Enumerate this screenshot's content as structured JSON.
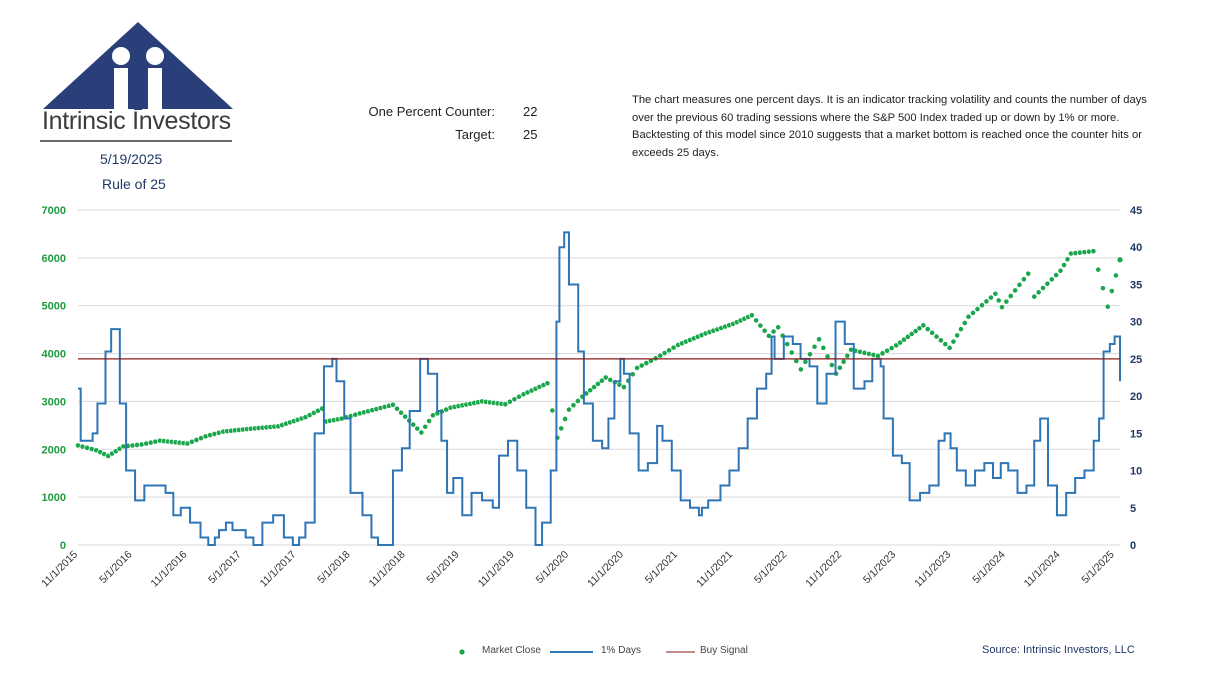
{
  "header": {
    "logo_name": "Intrinsic Investors",
    "date": "5/19/2025",
    "rule_name": "Rule of 25",
    "counter_label": "One Percent Counter:",
    "counter_value": "22",
    "target_label": "Target:",
    "target_value": "25",
    "description": "The chart measures one percent days.  It is an indicator tracking volatility and counts the number of days over the previous 60 trading sessions where the S&P 500 Index traded up or down by 1% or more. Backtesting of this model since 2010 suggests that a market bottom is reached once the counter hits or exceeds 25 days."
  },
  "source": "Source: Intrinsic Investors, LLC",
  "colors": {
    "market": "#1aa64a",
    "days": "#2e75b6",
    "signal": "#8b1a1a",
    "left_axis": "#1f9a3e",
    "right_axis": "#1f3864",
    "logo": "#2a3f7a"
  },
  "chart_data": {
    "type": "line",
    "x_axis": {
      "type": "date",
      "min": "2015-11-01",
      "max": "2025-05-19",
      "tick_labels": [
        "11/1/2015",
        "5/1/2016",
        "11/1/2016",
        "5/1/2017",
        "11/1/2017",
        "5/1/2018",
        "11/1/2018",
        "5/1/2019",
        "11/1/2019",
        "5/1/2020",
        "11/1/2020",
        "5/1/2021",
        "11/1/2021",
        "5/1/2022",
        "11/1/2022",
        "5/1/2023",
        "11/1/2023",
        "5/1/2024",
        "11/1/2024",
        "5/1/2025"
      ]
    },
    "y_left": {
      "ylim": [
        0,
        7000
      ],
      "ticks": [
        0,
        1000,
        2000,
        3000,
        4000,
        5000,
        6000,
        7000
      ]
    },
    "y_right": {
      "ylim": [
        0,
        45
      ],
      "ticks": [
        0,
        5,
        10,
        15,
        20,
        25,
        30,
        35,
        40,
        45
      ]
    },
    "grid": "horizontal",
    "legend_position": "bottom",
    "series": [
      {
        "name": "Market Close",
        "axis": "left",
        "style": "dots",
        "points": [
          [
            "2015-11-01",
            2080
          ],
          [
            "2016-01-01",
            1980
          ],
          [
            "2016-02-10",
            1860
          ],
          [
            "2016-04-01",
            2060
          ],
          [
            "2016-06-01",
            2100
          ],
          [
            "2016-08-01",
            2180
          ],
          [
            "2016-11-01",
            2120
          ],
          [
            "2017-01-01",
            2270
          ],
          [
            "2017-03-01",
            2370
          ],
          [
            "2017-06-01",
            2430
          ],
          [
            "2017-09-01",
            2480
          ],
          [
            "2017-12-01",
            2670
          ],
          [
            "2018-01-26",
            2850
          ],
          [
            "2018-02-08",
            2580
          ],
          [
            "2018-04-01",
            2640
          ],
          [
            "2018-06-01",
            2750
          ],
          [
            "2018-09-20",
            2930
          ],
          [
            "2018-12-24",
            2350
          ],
          [
            "2019-02-01",
            2710
          ],
          [
            "2019-04-01",
            2870
          ],
          [
            "2019-07-15",
            3000
          ],
          [
            "2019-10-01",
            2940
          ],
          [
            "2019-12-01",
            3150
          ],
          [
            "2020-02-19",
            3380
          ],
          [
            "2020-03-23",
            2240
          ],
          [
            "2020-05-01",
            2830
          ],
          [
            "2020-06-15",
            3100
          ],
          [
            "2020-09-01",
            3500
          ],
          [
            "2020-11-01",
            3300
          ],
          [
            "2020-12-15",
            3700
          ],
          [
            "2021-02-15",
            3900
          ],
          [
            "2021-05-01",
            4180
          ],
          [
            "2021-08-01",
            4420
          ],
          [
            "2021-11-01",
            4620
          ],
          [
            "2022-01-03",
            4800
          ],
          [
            "2022-03-01",
            4370
          ],
          [
            "2022-04-01",
            4550
          ],
          [
            "2022-06-16",
            3670
          ],
          [
            "2022-08-16",
            4300
          ],
          [
            "2022-10-12",
            3580
          ],
          [
            "2022-12-01",
            4080
          ],
          [
            "2023-03-01",
            3950
          ],
          [
            "2023-05-01",
            4170
          ],
          [
            "2023-07-31",
            4590
          ],
          [
            "2023-10-27",
            4120
          ],
          [
            "2023-12-29",
            4770
          ],
          [
            "2024-03-28",
            5250
          ],
          [
            "2024-04-19",
            4970
          ],
          [
            "2024-07-16",
            5670
          ],
          [
            "2024-08-05",
            5190
          ],
          [
            "2024-11-01",
            5730
          ],
          [
            "2024-12-06",
            6090
          ],
          [
            "2025-02-19",
            6140
          ],
          [
            "2025-04-08",
            4980
          ],
          [
            "2025-05-19",
            5960
          ]
        ]
      },
      {
        "name": "1% Days",
        "axis": "right",
        "style": "step",
        "points": [
          [
            "2015-11-01",
            21
          ],
          [
            "2015-11-10",
            14
          ],
          [
            "2015-12-20",
            15
          ],
          [
            "2016-01-05",
            19
          ],
          [
            "2016-02-01",
            26
          ],
          [
            "2016-02-20",
            29
          ],
          [
            "2016-03-20",
            19
          ],
          [
            "2016-04-10",
            10
          ],
          [
            "2016-05-10",
            6
          ],
          [
            "2016-06-10",
            8
          ],
          [
            "2016-07-10",
            8
          ],
          [
            "2016-08-20",
            7
          ],
          [
            "2016-09-15",
            4
          ],
          [
            "2016-10-10",
            5
          ],
          [
            "2016-11-10",
            3
          ],
          [
            "2016-12-15",
            1
          ],
          [
            "2017-01-10",
            0
          ],
          [
            "2017-02-01",
            1
          ],
          [
            "2017-02-15",
            2
          ],
          [
            "2017-03-10",
            3
          ],
          [
            "2017-04-01",
            2
          ],
          [
            "2017-05-01",
            2
          ],
          [
            "2017-05-15",
            1
          ],
          [
            "2017-06-10",
            0
          ],
          [
            "2017-07-10",
            3
          ],
          [
            "2017-08-15",
            4
          ],
          [
            "2017-09-20",
            1
          ],
          [
            "2017-10-20",
            0
          ],
          [
            "2017-11-10",
            1
          ],
          [
            "2017-12-01",
            3
          ],
          [
            "2018-01-01",
            15
          ],
          [
            "2018-02-01",
            24
          ],
          [
            "2018-03-01",
            25
          ],
          [
            "2018-03-15",
            22
          ],
          [
            "2018-04-10",
            17
          ],
          [
            "2018-05-01",
            7
          ],
          [
            "2018-06-10",
            4
          ],
          [
            "2018-07-10",
            1
          ],
          [
            "2018-08-01",
            0
          ],
          [
            "2018-08-20",
            0
          ],
          [
            "2018-09-20",
            10
          ],
          [
            "2018-10-20",
            13
          ],
          [
            "2018-11-15",
            18
          ],
          [
            "2018-12-20",
            25
          ],
          [
            "2019-01-15",
            23
          ],
          [
            "2019-02-15",
            18
          ],
          [
            "2019-03-01",
            14
          ],
          [
            "2019-03-20",
            7
          ],
          [
            "2019-04-10",
            9
          ],
          [
            "2019-05-10",
            4
          ],
          [
            "2019-06-10",
            7
          ],
          [
            "2019-07-15",
            6
          ],
          [
            "2019-08-20",
            5
          ],
          [
            "2019-09-10",
            12
          ],
          [
            "2019-10-10",
            14
          ],
          [
            "2019-11-10",
            10
          ],
          [
            "2019-12-10",
            5
          ],
          [
            "2020-01-10",
            0
          ],
          [
            "2020-02-01",
            3
          ],
          [
            "2020-03-01",
            10
          ],
          [
            "2020-03-20",
            30
          ],
          [
            "2020-03-30",
            40
          ],
          [
            "2020-04-15",
            42
          ],
          [
            "2020-05-01",
            35
          ],
          [
            "2020-06-01",
            26
          ],
          [
            "2020-06-20",
            19
          ],
          [
            "2020-07-20",
            14
          ],
          [
            "2020-08-20",
            13
          ],
          [
            "2020-09-10",
            17
          ],
          [
            "2020-09-30",
            22
          ],
          [
            "2020-10-20",
            25
          ],
          [
            "2020-11-01",
            23
          ],
          [
            "2020-11-20",
            15
          ],
          [
            "2020-12-20",
            10
          ],
          [
            "2021-01-20",
            11
          ],
          [
            "2021-02-20",
            16
          ],
          [
            "2021-03-10",
            14
          ],
          [
            "2021-04-10",
            10
          ],
          [
            "2021-05-10",
            6
          ],
          [
            "2021-06-10",
            5
          ],
          [
            "2021-07-10",
            4
          ],
          [
            "2021-07-20",
            5
          ],
          [
            "2021-08-10",
            6
          ],
          [
            "2021-09-20",
            8
          ],
          [
            "2021-10-20",
            10
          ],
          [
            "2021-11-20",
            13
          ],
          [
            "2021-12-20",
            17
          ],
          [
            "2022-01-20",
            21
          ],
          [
            "2022-02-20",
            23
          ],
          [
            "2022-03-10",
            28
          ],
          [
            "2022-03-20",
            25
          ],
          [
            "2022-04-20",
            28
          ],
          [
            "2022-05-20",
            27
          ],
          [
            "2022-06-15",
            25
          ],
          [
            "2022-07-15",
            24
          ],
          [
            "2022-08-10",
            19
          ],
          [
            "2022-09-10",
            23
          ],
          [
            "2022-10-10",
            30
          ],
          [
            "2022-11-10",
            27
          ],
          [
            "2022-12-10",
            21
          ],
          [
            "2023-01-15",
            22
          ],
          [
            "2023-02-10",
            25
          ],
          [
            "2023-03-10",
            24
          ],
          [
            "2023-03-20",
            17
          ],
          [
            "2023-04-20",
            12
          ],
          [
            "2023-05-20",
            11
          ],
          [
            "2023-06-15",
            6
          ],
          [
            "2023-07-20",
            7
          ],
          [
            "2023-08-20",
            8
          ],
          [
            "2023-09-20",
            14
          ],
          [
            "2023-10-10",
            15
          ],
          [
            "2023-10-30",
            13
          ],
          [
            "2023-11-20",
            10
          ],
          [
            "2023-12-20",
            8
          ],
          [
            "2024-01-20",
            10
          ],
          [
            "2024-02-20",
            11
          ],
          [
            "2024-03-20",
            9
          ],
          [
            "2024-04-15",
            11
          ],
          [
            "2024-05-10",
            10
          ],
          [
            "2024-06-10",
            7
          ],
          [
            "2024-07-10",
            8
          ],
          [
            "2024-08-05",
            14
          ],
          [
            "2024-08-25",
            17
          ],
          [
            "2024-09-20",
            8
          ],
          [
            "2024-10-20",
            4
          ],
          [
            "2024-11-20",
            7
          ],
          [
            "2024-12-20",
            9
          ],
          [
            "2025-01-20",
            10
          ],
          [
            "2025-02-20",
            14
          ],
          [
            "2025-03-10",
            17
          ],
          [
            "2025-03-25",
            26
          ],
          [
            "2025-04-15",
            27
          ],
          [
            "2025-05-01",
            28
          ],
          [
            "2025-05-19",
            22
          ]
        ]
      },
      {
        "name": "Buy Signal",
        "axis": "right",
        "style": "line",
        "points": [
          [
            "2015-11-01",
            25
          ],
          [
            "2025-05-19",
            25
          ]
        ]
      }
    ]
  }
}
